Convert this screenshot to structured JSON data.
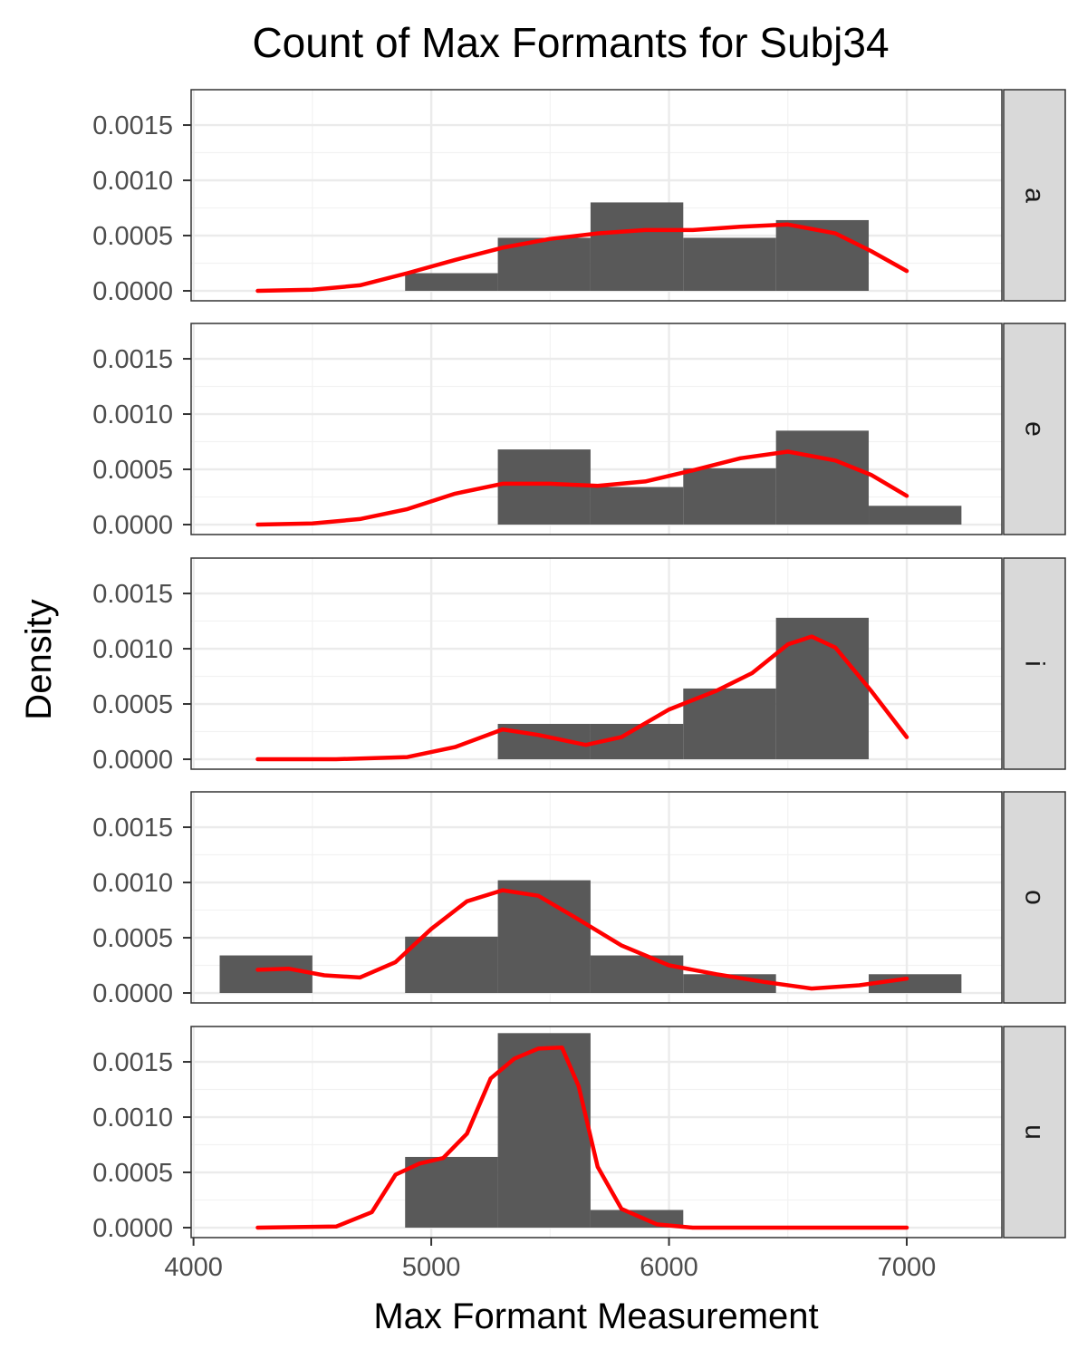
{
  "chart_data": {
    "type": "histogram",
    "title": "Count of Max Formants for Subj34",
    "xlabel": "Max Formant Measurement",
    "ylabel": "Density",
    "xlim": [
      3990,
      7400
    ],
    "ylim": [
      -9e-05,
      0.00182
    ],
    "x_ticks": [
      4000,
      5000,
      6000,
      7000
    ],
    "y_ticks": [
      0,
      0.0005,
      0.001,
      0.0015
    ],
    "y_tick_labels": [
      "0.0000",
      "0.0005",
      "0.0010",
      "0.0015"
    ],
    "facet_layout": "rows",
    "grid": true,
    "bar_color": "#595959",
    "density_color": "#ff0000",
    "strip_color": "#d9d9d9",
    "panels": [
      {
        "label": "a",
        "bins": [
          {
            "x0": 4890,
            "x1": 5280,
            "density": 0.00016
          },
          {
            "x0": 5280,
            "x1": 5670,
            "density": 0.00048
          },
          {
            "x0": 5670,
            "x1": 6060,
            "density": 0.0008
          },
          {
            "x0": 6060,
            "x1": 6450,
            "density": 0.00048
          },
          {
            "x0": 6450,
            "x1": 6840,
            "density": 0.00064
          }
        ],
        "density_curve": [
          [
            4270,
            0.0
          ],
          [
            4500,
            1e-05
          ],
          [
            4700,
            5e-05
          ],
          [
            4900,
            0.00016
          ],
          [
            5100,
            0.00028
          ],
          [
            5300,
            0.00039
          ],
          [
            5500,
            0.00047
          ],
          [
            5700,
            0.00052
          ],
          [
            5900,
            0.00055
          ],
          [
            6100,
            0.00055
          ],
          [
            6300,
            0.00058
          ],
          [
            6500,
            0.0006
          ],
          [
            6700,
            0.00052
          ],
          [
            6850,
            0.00036
          ],
          [
            7000,
            0.00018
          ]
        ]
      },
      {
        "label": "e",
        "bins": [
          {
            "x0": 5280,
            "x1": 5670,
            "density": 0.00068
          },
          {
            "x0": 5670,
            "x1": 6060,
            "density": 0.00034
          },
          {
            "x0": 6060,
            "x1": 6450,
            "density": 0.00051
          },
          {
            "x0": 6450,
            "x1": 6840,
            "density": 0.00085
          },
          {
            "x0": 6840,
            "x1": 7230,
            "density": 0.00017
          }
        ],
        "density_curve": [
          [
            4270,
            0.0
          ],
          [
            4500,
            1e-05
          ],
          [
            4700,
            5e-05
          ],
          [
            4900,
            0.00014
          ],
          [
            5100,
            0.00028
          ],
          [
            5300,
            0.00037
          ],
          [
            5500,
            0.00037
          ],
          [
            5700,
            0.00035
          ],
          [
            5900,
            0.00039
          ],
          [
            6100,
            0.00049
          ],
          [
            6300,
            0.0006
          ],
          [
            6500,
            0.00066
          ],
          [
            6700,
            0.00058
          ],
          [
            6850,
            0.00045
          ],
          [
            7000,
            0.00026
          ]
        ]
      },
      {
        "label": "i",
        "bins": [
          {
            "x0": 5280,
            "x1": 5670,
            "density": 0.00032
          },
          {
            "x0": 5670,
            "x1": 6060,
            "density": 0.00032
          },
          {
            "x0": 6060,
            "x1": 6450,
            "density": 0.00064
          },
          {
            "x0": 6450,
            "x1": 6840,
            "density": 0.00128
          }
        ],
        "density_curve": [
          [
            4270,
            0.0
          ],
          [
            4600,
            0.0
          ],
          [
            4900,
            2e-05
          ],
          [
            5100,
            0.00011
          ],
          [
            5300,
            0.00027
          ],
          [
            5450,
            0.00022
          ],
          [
            5650,
            0.00013
          ],
          [
            5800,
            0.0002
          ],
          [
            6000,
            0.00045
          ],
          [
            6200,
            0.00062
          ],
          [
            6350,
            0.00078
          ],
          [
            6500,
            0.00104
          ],
          [
            6600,
            0.00111
          ],
          [
            6700,
            0.00101
          ],
          [
            6850,
            0.00062
          ],
          [
            7000,
            0.0002
          ]
        ]
      },
      {
        "label": "o",
        "bins": [
          {
            "x0": 4110,
            "x1": 4500,
            "density": 0.00034
          },
          {
            "x0": 4890,
            "x1": 5280,
            "density": 0.00051
          },
          {
            "x0": 5280,
            "x1": 5670,
            "density": 0.00102
          },
          {
            "x0": 5670,
            "x1": 6060,
            "density": 0.00034
          },
          {
            "x0": 6060,
            "x1": 6450,
            "density": 0.00017
          },
          {
            "x0": 6840,
            "x1": 7230,
            "density": 0.00017
          }
        ],
        "density_curve": [
          [
            4270,
            0.00021
          ],
          [
            4400,
            0.00022
          ],
          [
            4550,
            0.00016
          ],
          [
            4700,
            0.00014
          ],
          [
            4850,
            0.00028
          ],
          [
            5000,
            0.00058
          ],
          [
            5150,
            0.00083
          ],
          [
            5300,
            0.00093
          ],
          [
            5450,
            0.00088
          ],
          [
            5600,
            0.00069
          ],
          [
            5800,
            0.00043
          ],
          [
            6000,
            0.00025
          ],
          [
            6200,
            0.00017
          ],
          [
            6400,
            0.0001
          ],
          [
            6600,
            4e-05
          ],
          [
            6800,
            7e-05
          ],
          [
            7000,
            0.00013
          ]
        ]
      },
      {
        "label": "u",
        "bins": [
          {
            "x0": 4890,
            "x1": 5280,
            "density": 0.00064
          },
          {
            "x0": 5280,
            "x1": 5670,
            "density": 0.00176
          },
          {
            "x0": 5670,
            "x1": 6060,
            "density": 0.00016
          }
        ],
        "density_curve": [
          [
            4270,
            0.0
          ],
          [
            4600,
            1e-05
          ],
          [
            4750,
            0.00014
          ],
          [
            4850,
            0.00048
          ],
          [
            4950,
            0.00058
          ],
          [
            5050,
            0.00063
          ],
          [
            5150,
            0.00085
          ],
          [
            5250,
            0.00135
          ],
          [
            5350,
            0.00153
          ],
          [
            5450,
            0.00162
          ],
          [
            5550,
            0.00163
          ],
          [
            5620,
            0.00128
          ],
          [
            5700,
            0.00055
          ],
          [
            5800,
            0.00017
          ],
          [
            5950,
            3e-05
          ],
          [
            6100,
            0.0
          ],
          [
            6500,
            0.0
          ],
          [
            7000,
            0.0
          ]
        ]
      }
    ]
  }
}
